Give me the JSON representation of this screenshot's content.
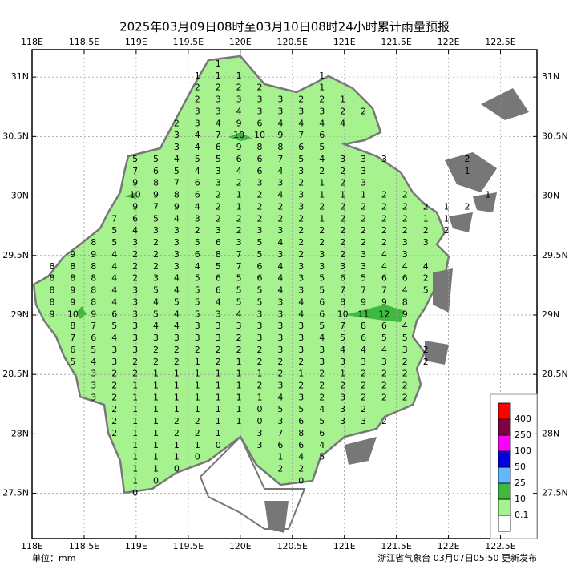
{
  "title": "2025年03月09日08时至03月10日08时24小时累计雨量预报",
  "unit": "单位：mm",
  "issuer": "浙江省气象台 03月07日05:50 更新发布",
  "axes": {
    "xlim": [
      118,
      122.85
    ],
    "ylim": [
      27.12,
      31.23
    ],
    "xticks": [
      {
        "value": 118,
        "label": "118E"
      },
      {
        "value": 118.5,
        "label": "118.5E"
      },
      {
        "value": 119,
        "label": "119E"
      },
      {
        "value": 119.5,
        "label": "119.5E"
      },
      {
        "value": 120,
        "label": "120E"
      },
      {
        "value": 120.5,
        "label": "120.5E"
      },
      {
        "value": 121,
        "label": "121E"
      },
      {
        "value": 121.5,
        "label": "121.5E"
      },
      {
        "value": 122,
        "label": "122E"
      },
      {
        "value": 122.5,
        "label": "122.5E"
      }
    ],
    "yticks": [
      {
        "value": 31,
        "label": "31N"
      },
      {
        "value": 30.5,
        "label": "30.5N"
      },
      {
        "value": 30,
        "label": "30N"
      },
      {
        "value": 29.5,
        "label": "29.5N"
      },
      {
        "value": 29,
        "label": "29N"
      },
      {
        "value": 28.5,
        "label": "28.5N"
      },
      {
        "value": 28,
        "label": "28N"
      },
      {
        "value": 27.5,
        "label": "27.5N"
      }
    ],
    "grid": true
  },
  "legend": {
    "levels": [
      0.1,
      10,
      25,
      50,
      100,
      250,
      400
    ],
    "colors": [
      "#ffffff",
      "#a6f28f",
      "#3dba3d",
      "#61b8ff",
      "#0000e1",
      "#fa00fa",
      "#800040",
      "#ff0000"
    ]
  },
  "grid": {
    "rows": [
      [
        null,
        null,
        null,
        null,
        null,
        null,
        null,
        null,
        1
      ],
      [
        null,
        null,
        null,
        null,
        null,
        null,
        null,
        1,
        1,
        1,
        null,
        null,
        null,
        1
      ],
      [
        null,
        null,
        null,
        null,
        null,
        null,
        null,
        2,
        2,
        2,
        2,
        null,
        null,
        1
      ],
      [
        null,
        null,
        null,
        null,
        null,
        null,
        null,
        2,
        3,
        3,
        3,
        3,
        2,
        2,
        1
      ],
      [
        null,
        null,
        null,
        null,
        null,
        null,
        null,
        3,
        3,
        4,
        3,
        3,
        3,
        3,
        2,
        2
      ],
      [
        null,
        null,
        null,
        null,
        null,
        null,
        2,
        3,
        4,
        9,
        6,
        4,
        4,
        4,
        4
      ],
      [
        null,
        null,
        null,
        null,
        null,
        null,
        3,
        4,
        7,
        10,
        10,
        9,
        7,
        6
      ],
      [
        null,
        null,
        null,
        null,
        null,
        null,
        3,
        4,
        6,
        9,
        8,
        8,
        6,
        5
      ],
      [
        null,
        null,
        null,
        null,
        5,
        5,
        4,
        5,
        5,
        6,
        6,
        7,
        5,
        4,
        3,
        3,
        3,
        null,
        null,
        null,
        2
      ],
      [
        null,
        null,
        null,
        null,
        7,
        6,
        5,
        4,
        3,
        4,
        6,
        4,
        3,
        2,
        2,
        3,
        null,
        null,
        null,
        null,
        1
      ],
      [
        null,
        null,
        null,
        null,
        9,
        8,
        7,
        6,
        3,
        2,
        3,
        3,
        2,
        1,
        2,
        3
      ],
      [
        null,
        null,
        null,
        null,
        10,
        9,
        8,
        6,
        2,
        1,
        2,
        4,
        3,
        1,
        1,
        1,
        2,
        2,
        null,
        null,
        null,
        1
      ],
      [
        null,
        null,
        null,
        null,
        9,
        7,
        9,
        4,
        2,
        1,
        2,
        2,
        3,
        2,
        2,
        2,
        2,
        2,
        2,
        1,
        2
      ],
      [
        null,
        null,
        null,
        7,
        6,
        5,
        4,
        3,
        2,
        2,
        2,
        2,
        2,
        1,
        2,
        2,
        2,
        2,
        1,
        1
      ],
      [
        null,
        null,
        null,
        5,
        4,
        3,
        3,
        2,
        3,
        2,
        3,
        3,
        2,
        2,
        2,
        2,
        2,
        2,
        2,
        2
      ],
      [
        null,
        null,
        8,
        5,
        3,
        2,
        3,
        5,
        6,
        3,
        5,
        4,
        2,
        2,
        2,
        2,
        2,
        3,
        3
      ],
      [
        null,
        9,
        9,
        4,
        2,
        2,
        3,
        6,
        8,
        7,
        5,
        3,
        2,
        3,
        2,
        3,
        4,
        3
      ],
      [
        8,
        8,
        8,
        4,
        2,
        2,
        3,
        4,
        5,
        7,
        6,
        4,
        3,
        3,
        3,
        3,
        4,
        4,
        4
      ],
      [
        8,
        8,
        8,
        4,
        2,
        3,
        4,
        5,
        6,
        5,
        6,
        4,
        3,
        5,
        6,
        5,
        6,
        6,
        2
      ],
      [
        8,
        9,
        8,
        4,
        3,
        5,
        4,
        5,
        6,
        5,
        5,
        4,
        3,
        5,
        7,
        7,
        7,
        4,
        5
      ],
      [
        8,
        9,
        8,
        4,
        3,
        4,
        5,
        5,
        4,
        5,
        5,
        3,
        4,
        6,
        8,
        9,
        9,
        8
      ],
      [
        9,
        10,
        9,
        6,
        3,
        5,
        4,
        5,
        3,
        4,
        3,
        3,
        4,
        6,
        10,
        11,
        12,
        9
      ],
      [
        null,
        8,
        7,
        5,
        3,
        4,
        4,
        3,
        3,
        3,
        3,
        3,
        3,
        5,
        7,
        8,
        6,
        4
      ],
      [
        null,
        7,
        6,
        4,
        3,
        3,
        3,
        3,
        3,
        2,
        3,
        3,
        3,
        4,
        5,
        6,
        5,
        5
      ],
      [
        null,
        6,
        5,
        3,
        3,
        2,
        2,
        2,
        2,
        2,
        2,
        3,
        3,
        3,
        4,
        4,
        4,
        3,
        2
      ],
      [
        null,
        5,
        4,
        3,
        2,
        2,
        2,
        1,
        2,
        1,
        2,
        2,
        2,
        3,
        3,
        3,
        3,
        2,
        2
      ],
      [
        null,
        null,
        3,
        2,
        2,
        1,
        1,
        1,
        1,
        1,
        1,
        2,
        1,
        2,
        1,
        2,
        2,
        2
      ],
      [
        null,
        null,
        3,
        2,
        1,
        1,
        1,
        1,
        1,
        1,
        2,
        3,
        2,
        2,
        2,
        2,
        2,
        2
      ],
      [
        null,
        null,
        3,
        2,
        1,
        1,
        1,
        1,
        1,
        1,
        1,
        4,
        3,
        2,
        3,
        2,
        2,
        2
      ],
      [
        null,
        null,
        null,
        2,
        1,
        1,
        1,
        1,
        1,
        1,
        0,
        5,
        5,
        4,
        3,
        2
      ],
      [
        null,
        null,
        null,
        2,
        1,
        1,
        2,
        2,
        1,
        1,
        0,
        3,
        6,
        5,
        3,
        3,
        2
      ],
      [
        null,
        null,
        null,
        2,
        1,
        1,
        2,
        2,
        1,
        null,
        3,
        7,
        8,
        6
      ],
      [
        null,
        null,
        null,
        null,
        1,
        1,
        1,
        1,
        0,
        null,
        3,
        6,
        6,
        4
      ],
      [
        null,
        null,
        null,
        null,
        1,
        1,
        1,
        0,
        null,
        null,
        null,
        1,
        4,
        5
      ],
      [
        null,
        null,
        null,
        null,
        1,
        1,
        0,
        null,
        null,
        null,
        null,
        2,
        2
      ],
      [
        null,
        null,
        null,
        null,
        1,
        0,
        null,
        null,
        null,
        null,
        null,
        null,
        0
      ],
      [
        null,
        null,
        null,
        null,
        0
      ]
    ]
  }
}
